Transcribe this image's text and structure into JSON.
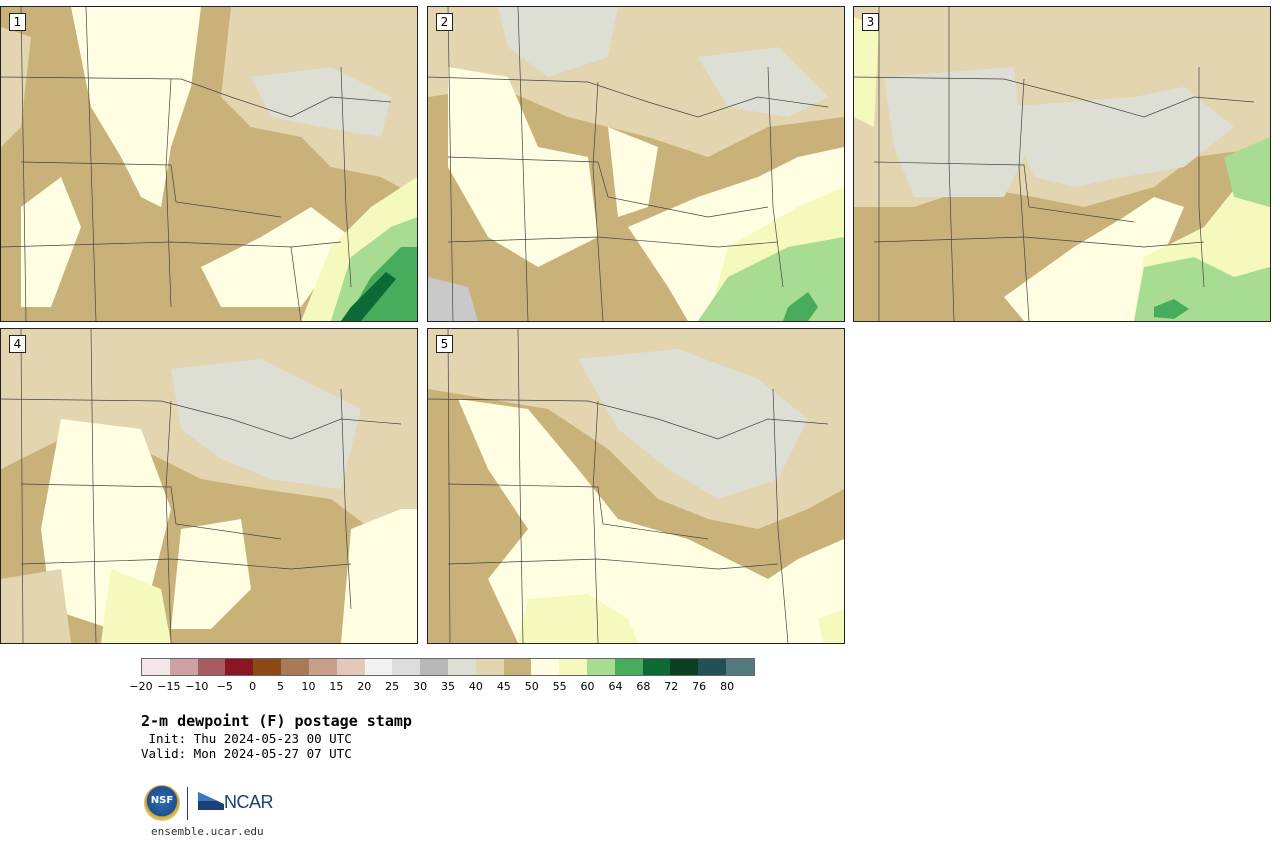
{
  "panels": [
    {
      "label": "1"
    },
    {
      "label": "2"
    },
    {
      "label": "3"
    },
    {
      "label": "4"
    },
    {
      "label": "5"
    }
  ],
  "colorbar": {
    "colors": [
      "#f3e6e6",
      "#cfa0a2",
      "#a75a60",
      "#8b1520",
      "#8b4a15",
      "#a87a58",
      "#c8a08a",
      "#e2c8b8",
      "#f2f2f2",
      "#dcdcdc",
      "#b8b8b8",
      "#dedfd4",
      "#e2d5b0",
      "#c9b27a",
      "#fffde2",
      "#f5f9bd",
      "#a8dc92",
      "#47ad5d",
      "#0b6a36",
      "#0a3f24",
      "#215056",
      "#507a7d"
    ],
    "ticks": [
      "−20",
      "−15",
      "−10",
      "−5",
      "0",
      "5",
      "10",
      "15",
      "20",
      "25",
      "30",
      "35",
      "40",
      "45",
      "50",
      "55",
      "60",
      "64",
      "68",
      "72",
      "76",
      "80"
    ]
  },
  "title": "2-m dewpoint (F) postage stamp",
  "init": " Init: Thu 2024-05-23 00 UTC",
  "valid": "Valid: Mon 2024-05-27 07 UTC",
  "logos": {
    "nsf": "NSF",
    "ncar": "NCAR"
  },
  "url": "ensemble.ucar.edu"
}
